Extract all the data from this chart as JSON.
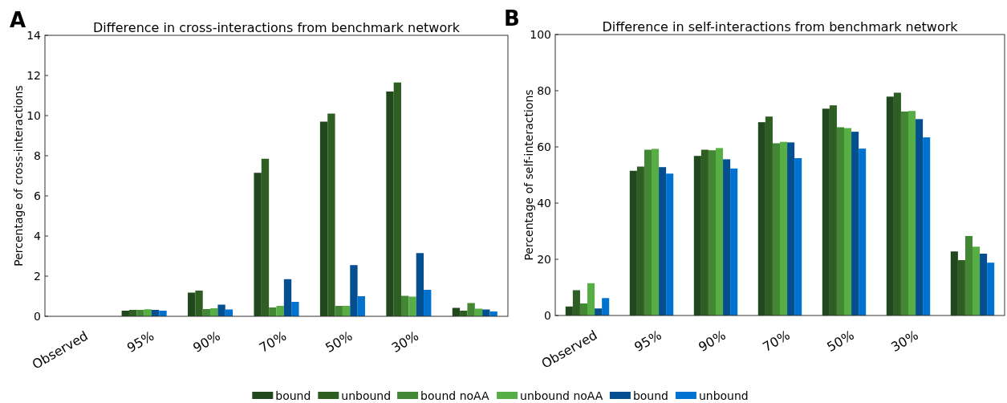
{
  "chart_data": [
    {
      "type": "bar",
      "title": "Difference in cross-interactions from benchmark network",
      "ylabel": "Percentage of cross-interactions",
      "annotations": [
        "A"
      ],
      "categories": [
        "Observed",
        "95%",
        "90%",
        "70%",
        "50%",
        "30%",
        null
      ],
      "ylim": [
        0,
        14
      ],
      "yticks": [
        0,
        2,
        4,
        6,
        8,
        10,
        12,
        14
      ],
      "grid": false,
      "series": [
        {
          "color": "#21481c",
          "values": [
            0,
            0.28,
            1.18,
            7.15,
            9.7,
            11.2,
            0.42
          ]
        },
        {
          "color": "#2e5e22",
          "values": [
            0,
            0.32,
            1.28,
            7.85,
            10.1,
            11.65,
            0.28
          ]
        },
        {
          "color": "#428733",
          "values": [
            0,
            0.32,
            0.36,
            0.44,
            0.52,
            1.02,
            0.66
          ]
        },
        {
          "color": "#56ae45",
          "values": [
            0,
            0.35,
            0.4,
            0.52,
            0.52,
            0.98,
            0.38
          ]
        },
        {
          "color": "#034f8f",
          "values": [
            0,
            0.32,
            0.58,
            1.85,
            2.55,
            3.15,
            0.34
          ]
        },
        {
          "color": "#0072cf",
          "values": [
            0,
            0.28,
            0.34,
            0.72,
            1.0,
            1.32,
            0.24
          ]
        }
      ]
    },
    {
      "type": "bar",
      "title": "Difference in self-interactions from benchmark network",
      "ylabel": "Percentage of self-interactions",
      "annotations": [
        "B"
      ],
      "categories": [
        "Observed",
        "95%",
        "90%",
        "70%",
        "50%",
        "30%",
        null
      ],
      "ylim": [
        0,
        100
      ],
      "yticks": [
        0,
        20,
        40,
        60,
        80,
        100
      ],
      "grid": false,
      "legend": "bottom",
      "series": [
        {
          "name": "bound",
          "color": "#21481c",
          "values": [
            3.2,
            51.5,
            56.8,
            68.8,
            73.6,
            77.9,
            22.8
          ]
        },
        {
          "name": "unbound",
          "color": "#2e5e22",
          "values": [
            9,
            53,
            59,
            70.8,
            74.8,
            79.3,
            19.7
          ]
        },
        {
          "name": "bound noAA",
          "color": "#428733",
          "values": [
            4.3,
            59,
            58.8,
            61.3,
            67,
            72.6,
            28.3
          ]
        },
        {
          "name": "unbound noAA",
          "color": "#56ae45",
          "values": [
            11.5,
            59.3,
            59.6,
            61.8,
            66.7,
            72.8,
            24.5
          ]
        },
        {
          "name": "bound",
          "color": "#034f8f",
          "values": [
            2.5,
            52.8,
            55.6,
            61.6,
            65.4,
            69.9,
            22
          ]
        },
        {
          "name": "unbound",
          "color": "#0072cf",
          "values": [
            6.2,
            50.5,
            52.3,
            56,
            59.4,
            63.4,
            18.8
          ]
        }
      ]
    }
  ]
}
